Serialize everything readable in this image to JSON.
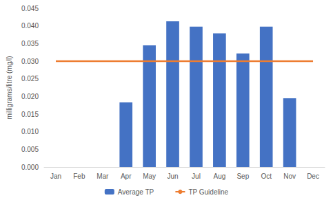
{
  "chart_data": {
    "type": "bar",
    "y_label": "milligrams/litre (mg/l)",
    "categories": [
      "Jan",
      "Feb",
      "Mar",
      "Apr",
      "May",
      "Jun",
      "Jul",
      "Aug",
      "Sep",
      "Oct",
      "Nov",
      "Dec"
    ],
    "series": [
      {
        "name": "Average TP",
        "type": "bar",
        "color": "#4472c4",
        "values": [
          null,
          null,
          null,
          0.0183,
          0.0345,
          0.0413,
          0.0398,
          0.0379,
          0.0322,
          0.0398,
          0.0195,
          null
        ]
      },
      {
        "name": "TP Guideline",
        "type": "line",
        "color": "#ed7d31",
        "values": [
          0.03,
          0.03,
          0.03,
          0.03,
          0.03,
          0.03,
          0.03,
          0.03,
          0.03,
          0.03,
          0.03,
          0.03
        ]
      }
    ],
    "ylim": [
      0,
      0.045
    ],
    "yticks": [
      {
        "value": 0,
        "label": "0.000"
      },
      {
        "value": 0.005,
        "label": "0.005"
      },
      {
        "value": 0.01,
        "label": "0.010"
      },
      {
        "value": 0.015,
        "label": "0.015"
      },
      {
        "value": 0.02,
        "label": "0.020"
      },
      {
        "value": 0.025,
        "label": "0.025"
      },
      {
        "value": 0.03,
        "label": "0.030"
      },
      {
        "value": 0.035,
        "label": "0.035"
      },
      {
        "value": 0.04,
        "label": "0.040"
      },
      {
        "value": 0.045,
        "label": "0.045"
      }
    ],
    "grid": false,
    "legend": "bottom"
  }
}
